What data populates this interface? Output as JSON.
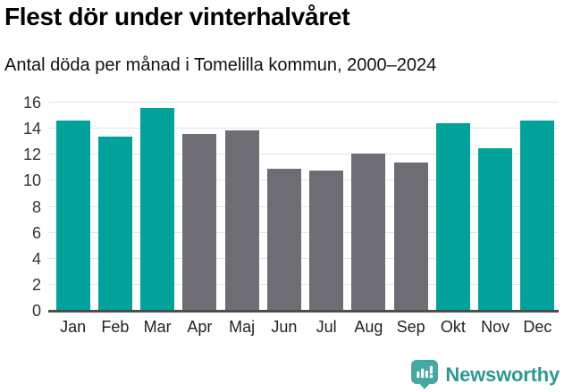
{
  "header": {
    "title": "Flest dör under vinterhalvåret",
    "subtitle": "Antal döda per månad i Tomelilla kommun, 2000–2024"
  },
  "chart_data": {
    "type": "bar",
    "title": "Flest dör under vinterhalvåret",
    "subtitle": "Antal döda per månad i Tomelilla kommun, 2000–2024",
    "categories": [
      "Jan",
      "Feb",
      "Mar",
      "Apr",
      "Maj",
      "Jun",
      "Jul",
      "Aug",
      "Sep",
      "Okt",
      "Nov",
      "Dec"
    ],
    "values": [
      14.6,
      13.4,
      15.6,
      13.6,
      13.9,
      10.9,
      10.8,
      12.1,
      11.4,
      14.4,
      12.5,
      14.6
    ],
    "bar_colors": [
      "teal",
      "teal",
      "teal",
      "gray",
      "gray",
      "gray",
      "gray",
      "gray",
      "gray",
      "teal",
      "teal",
      "teal"
    ],
    "highlight_color": "#00a29b",
    "muted_color": "#6e6d73",
    "gridline_color": "#e4e4e4",
    "axis_line_color": "#4d4d4d",
    "ylim": [
      0,
      16
    ],
    "yticks": [
      0,
      2,
      4,
      6,
      8,
      10,
      12,
      14,
      16
    ],
    "grid": true,
    "legend": "none",
    "xlabel": "",
    "ylabel": ""
  },
  "footer": {
    "brand": "Newsworthy",
    "brand_color": "#2e9897",
    "icon": "newsworthy-bar-chart-bubble-icon",
    "icon_color": "#45a8a2"
  }
}
